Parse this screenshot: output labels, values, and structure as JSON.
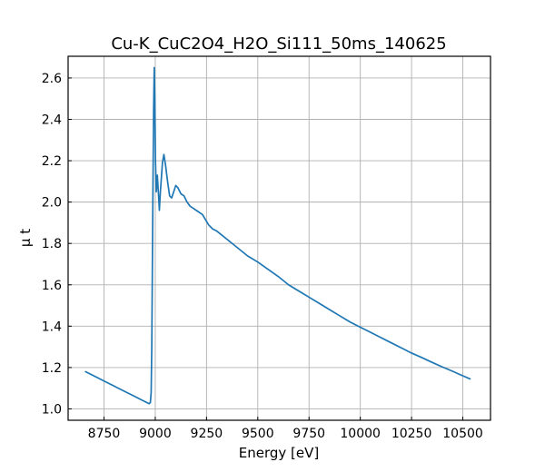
{
  "chart_data": {
    "type": "line",
    "title": "Cu-K_CuC2O4_H2O_Si111_50ms_140625",
    "xlabel": "Energy [eV]",
    "ylabel": "μ t",
    "xlim": [
      8575,
      10635
    ],
    "ylim": [
      0.945,
      2.705
    ],
    "grid": true,
    "x_ticks": [
      8750,
      9000,
      9250,
      9500,
      9750,
      10000,
      10250,
      10500
    ],
    "y_ticks": [
      1.0,
      1.2,
      1.4,
      1.6,
      1.8,
      2.0,
      2.2,
      2.4,
      2.6
    ],
    "x_tick_labels": [
      "8750",
      "9000",
      "9250",
      "9500",
      "9750",
      "10000",
      "10250",
      "10500"
    ],
    "y_tick_labels": [
      "1.0",
      "1.2",
      "1.4",
      "1.6",
      "1.8",
      "2.0",
      "2.2",
      "2.4",
      "2.6"
    ],
    "series": [
      {
        "color": "#1f77b4",
        "x": [
          8660,
          8700,
          8750,
          8800,
          8850,
          8900,
          8940,
          8960,
          8970,
          8976,
          8980,
          8983,
          8986,
          8989,
          8992,
          8995,
          8998,
          9001,
          9005,
          9010,
          9015,
          9020,
          9025,
          9030,
          9035,
          9042,
          9050,
          9060,
          9070,
          9080,
          9090,
          9100,
          9110,
          9125,
          9140,
          9155,
          9170,
          9185,
          9200,
          9230,
          9260,
          9280,
          9300,
          9350,
          9400,
          9450,
          9500,
          9550,
          9600,
          9650,
          9700,
          9750,
          9800,
          9850,
          9900,
          9950,
          10000,
          10050,
          10100,
          10150,
          10200,
          10250,
          10300,
          10350,
          10400,
          10450,
          10500,
          10535
        ],
        "y": [
          1.18,
          1.16,
          1.135,
          1.11,
          1.085,
          1.06,
          1.04,
          1.03,
          1.025,
          1.03,
          1.08,
          1.3,
          1.7,
          2.1,
          2.45,
          2.65,
          2.5,
          2.2,
          2.05,
          2.13,
          2.05,
          1.96,
          2.05,
          2.12,
          2.19,
          2.23,
          2.18,
          2.1,
          2.03,
          2.02,
          2.05,
          2.08,
          2.07,
          2.04,
          2.03,
          2.0,
          1.98,
          1.97,
          1.96,
          1.94,
          1.89,
          1.87,
          1.86,
          1.82,
          1.78,
          1.74,
          1.71,
          1.675,
          1.64,
          1.6,
          1.57,
          1.54,
          1.51,
          1.48,
          1.45,
          1.42,
          1.395,
          1.37,
          1.345,
          1.32,
          1.295,
          1.27,
          1.248,
          1.225,
          1.203,
          1.182,
          1.16,
          1.145
        ]
      }
    ]
  }
}
